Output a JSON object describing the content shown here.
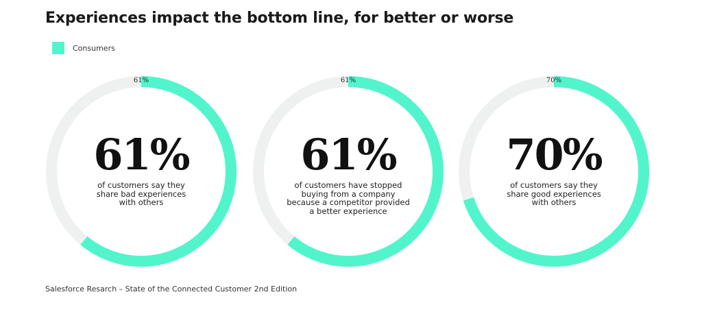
{
  "title": "Experiences impact the bottom line, for better or worse",
  "legend": {
    "label": "Consumers",
    "color": "#52f5cb"
  },
  "colors": {
    "accent": "#52f5cb",
    "track": "#eef1f0"
  },
  "chart_data": {
    "type": "pie",
    "series": [
      {
        "name": "Consumers",
        "values": [
          61,
          61,
          70
        ]
      }
    ],
    "items": [
      {
        "value": 61,
        "ring_label": "61%",
        "big_label": "61%",
        "caption": [
          "of customers say they",
          "share bad experiences",
          "with others"
        ]
      },
      {
        "value": 61,
        "ring_label": "61%",
        "big_label": "61%",
        "caption": [
          "of customers have stopped",
          "buying from a company",
          "because a competitor provided",
          "a better experience"
        ]
      },
      {
        "value": 70,
        "ring_label": "70%",
        "big_label": "70%",
        "caption": [
          "of customers say they",
          "share good experiences",
          "with others"
        ]
      }
    ]
  },
  "source": "Salesforce Resarch – State of the Connected Customer 2nd Edition"
}
